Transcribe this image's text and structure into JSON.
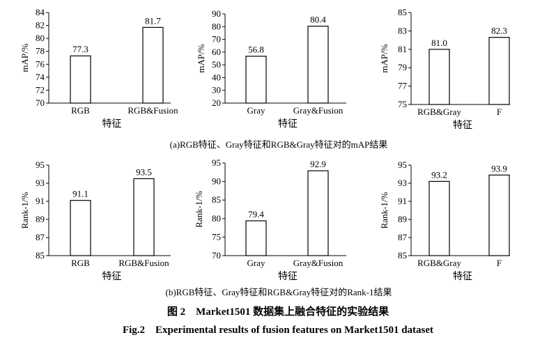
{
  "figure": {
    "subcaption_a": "(a)RGB特征、Gray特征和RGB&Gray特征对的mAP结果",
    "subcaption_b": "(b)RGB特征、Gray特征和RGB&Gray特征对的Rank-1结果",
    "caption_cn": "图 2　Market1501 数据集上融合特征的实验结果",
    "caption_en": "Fig.2　Experimental results of fusion features on Market1501 dataset"
  },
  "chart_data": [
    {
      "type": "bar",
      "row": "a",
      "categories": [
        "RGB",
        "RGB&Fusion"
      ],
      "values": [
        77.3,
        81.7
      ],
      "value_labels": [
        "77.3",
        "81.7"
      ],
      "ylabel": "mAP/%",
      "xlabel": "特征",
      "ylim": [
        70,
        84
      ],
      "yticks": [
        70,
        72,
        74,
        76,
        78,
        80,
        82,
        84
      ],
      "grid": false
    },
    {
      "type": "bar",
      "row": "a",
      "categories": [
        "Gray",
        "Gray&Fusion"
      ],
      "values": [
        56.8,
        80.4
      ],
      "value_labels": [
        "56.8",
        "80.4"
      ],
      "ylabel": "mAP/%",
      "xlabel": "特征",
      "ylim": [
        20,
        90
      ],
      "yticks": [
        20,
        30,
        40,
        50,
        60,
        70,
        80,
        90
      ],
      "grid": false
    },
    {
      "type": "bar",
      "row": "a",
      "categories": [
        "RGB&Gray",
        "F"
      ],
      "values": [
        81.0,
        82.3
      ],
      "value_labels": [
        "81.0",
        "82.3"
      ],
      "ylabel": "mAP/%",
      "xlabel": "特征",
      "ylim": [
        75,
        85
      ],
      "yticks": [
        75,
        77,
        79,
        81,
        83,
        85
      ],
      "grid": false
    },
    {
      "type": "bar",
      "row": "b",
      "categories": [
        "RGB",
        "RGB&Fusion"
      ],
      "values": [
        91.1,
        93.5
      ],
      "value_labels": [
        "91.1",
        "93.5"
      ],
      "ylabel": "Rank-1/%",
      "xlabel": "特征",
      "ylim": [
        85,
        95
      ],
      "yticks": [
        85,
        87,
        89,
        91,
        93,
        95
      ],
      "grid": false
    },
    {
      "type": "bar",
      "row": "b",
      "categories": [
        "Gray",
        "Gray&Fusion"
      ],
      "values": [
        79.4,
        92.9
      ],
      "value_labels": [
        "79.4",
        "92.9"
      ],
      "ylabel": "Rank-1/%",
      "xlabel": "特征",
      "ylim": [
        70,
        95
      ],
      "yticks": [
        70,
        75,
        80,
        85,
        90,
        95
      ],
      "grid": false
    },
    {
      "type": "bar",
      "row": "b",
      "categories": [
        "RGB&Gray",
        "F"
      ],
      "values": [
        93.2,
        93.9
      ],
      "value_labels": [
        "93.2",
        "93.9"
      ],
      "ylabel": "Rank-1/%",
      "xlabel": "特征",
      "ylim": [
        85,
        95
      ],
      "yticks": [
        85,
        87,
        89,
        91,
        93,
        95
      ],
      "grid": false
    }
  ]
}
